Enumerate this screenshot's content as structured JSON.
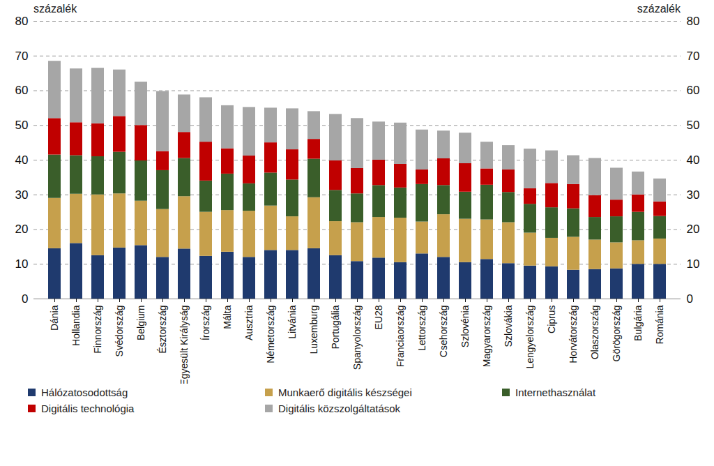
{
  "chart_data": {
    "type": "bar",
    "stacked": true,
    "grid": true,
    "legend": "bottom",
    "ylabel": "százalék",
    "y2label": "százalék",
    "ylim": [
      0,
      80
    ],
    "yticks": [
      0,
      10,
      20,
      30,
      40,
      50,
      60,
      70,
      80
    ],
    "y2lim": [
      0,
      80
    ],
    "y2ticks": [
      0,
      10,
      20,
      30,
      40,
      50,
      60,
      70,
      80
    ],
    "categories": [
      "Dánia",
      "Hollandia",
      "Finnország",
      "Svédország",
      "Belgium",
      "Észtország",
      "Egyesült Királyság",
      "Írország",
      "Málta",
      "Ausztria",
      "Németország",
      "Litvánia",
      "Luxemburg",
      "Portugália",
      "Spanyolország",
      "EU28",
      "Franciaország",
      "Lettország",
      "Csehország",
      "Szlovénia",
      "Magyarország",
      "Szlovákia",
      "Lengyelország",
      "Ciprus",
      "Horvátország",
      "Olaszország",
      "Görögország",
      "Bulgária",
      "Románia"
    ],
    "series": [
      {
        "name": "Hálózatosodottság",
        "color": "#1f3a6e",
        "values": [
          14.5,
          16,
          12.5,
          14.7,
          15.4,
          12,
          14.4,
          12.3,
          13.5,
          12,
          14,
          14,
          14.5,
          12.5,
          10.8,
          11.8,
          10.5,
          13,
          12,
          10.5,
          11.4,
          10.2,
          9.5,
          9.3,
          8.3,
          8.5,
          8.7,
          10,
          10
        ]
      },
      {
        "name": "Munkaerő digitális készségei",
        "color": "#c6a04c",
        "values": [
          14.5,
          14.2,
          17.5,
          15.6,
          12.8,
          13.8,
          15.1,
          12.7,
          12,
          13.3,
          12.8,
          9.7,
          14.7,
          9.8,
          11.2,
          11.7,
          12.8,
          9.2,
          12.3,
          12.5,
          11.4,
          11.8,
          9.5,
          8.2,
          9.5,
          8.5,
          7.5,
          6.8,
          7.3
        ]
      },
      {
        "name": "Internethasználat",
        "color": "#3a5e2a",
        "values": [
          12.5,
          11.1,
          11,
          12,
          11.6,
          11.2,
          11,
          9,
          10.5,
          7.9,
          9.5,
          10.6,
          11.1,
          9,
          8.3,
          9.2,
          8.7,
          10.8,
          8.4,
          7.8,
          10,
          8.7,
          8.3,
          8.8,
          8.2,
          6.5,
          7.5,
          8.2,
          6.5
        ]
      },
      {
        "name": "Digitális technológia",
        "color": "#c00000",
        "values": [
          10.5,
          9.5,
          9.5,
          10.3,
          10.2,
          5.5,
          7.5,
          11.2,
          7.3,
          8,
          8.7,
          8.7,
          5.7,
          8.5,
          7.3,
          7.3,
          6.8,
          4.2,
          7.7,
          8.2,
          4.7,
          6.5,
          4.5,
          7,
          7,
          6.3,
          4.8,
          5,
          4.2
        ]
      },
      {
        "name": "Digitális közszolgáltatások",
        "color": "#a6a6a6",
        "values": [
          16.5,
          15.5,
          16,
          13.4,
          12.5,
          17.3,
          10.8,
          12.8,
          12.4,
          14,
          10,
          11.8,
          8,
          13.4,
          14.4,
          11,
          11.9,
          11.5,
          8,
          8.8,
          7.7,
          7,
          11.4,
          9.4,
          8.3,
          10.7,
          9.2,
          6.6,
          6.6
        ]
      }
    ]
  }
}
